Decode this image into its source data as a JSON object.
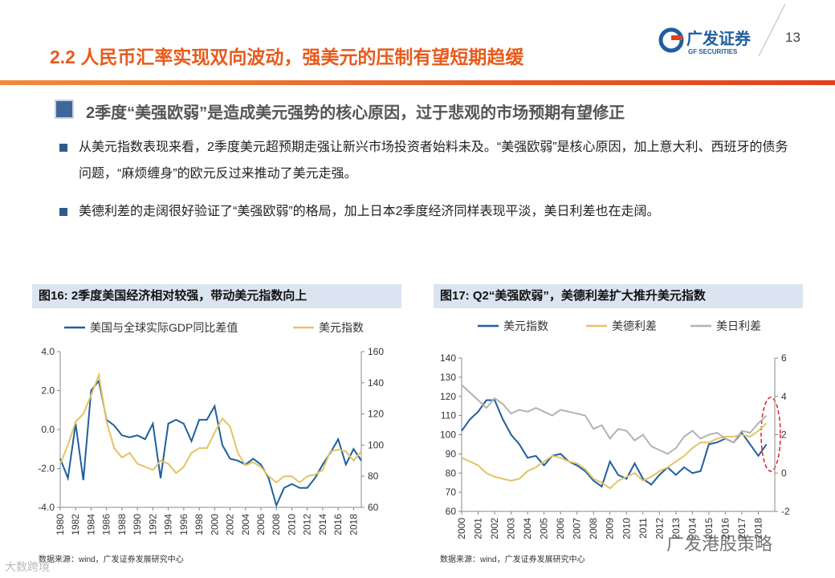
{
  "header": {
    "title": "2.2 人民币汇率实现双向波动，强美元的压制有望短期趋缓",
    "logo": "广发证券",
    "logo_sub": "GF SECURITIES",
    "page": "13"
  },
  "subtitle": "2季度“美强欧弱”是造成美元强势的核心原因，过于悲观的市场预期有望修正",
  "bullets": [
    "从美元指数表现来看，2季度美元超预期走强让新兴市场投资者始料未及。“美强欧弱”是核心原因，加上意大利、西班牙的债务问题，“麻烦缠身”的欧元反过来推动了美元走强。",
    "美德利差的走阔很好验证了“美强欧弱”的格局，加上日本2季度经济同样表现平淡，美日利差也在走阔。"
  ],
  "watermark": "广发港股策略",
  "corner_mark": "大数跨境",
  "chart_data": [
    {
      "type": "line",
      "title": "图16:  2季度美国经济相对较强，带动美元指数向上",
      "source": "数据来源：wind，广发证券发展研究中心",
      "x": [
        1980,
        1981,
        1982,
        1983,
        1984,
        1985,
        1986,
        1987,
        1988,
        1989,
        1990,
        1991,
        1992,
        1993,
        1994,
        1995,
        1996,
        1997,
        1998,
        1999,
        2000,
        2001,
        2002,
        2003,
        2004,
        2005,
        2006,
        2007,
        2008,
        2009,
        2010,
        2011,
        2012,
        2013,
        2014,
        2015,
        2016,
        2017,
        2018,
        2019
      ],
      "xlim": [
        1980,
        2019
      ],
      "xticks": [
        1980,
        1982,
        1984,
        1986,
        1988,
        1990,
        1992,
        1994,
        1996,
        1998,
        2000,
        2002,
        2004,
        2006,
        2008,
        2010,
        2012,
        2014,
        2016,
        2018
      ],
      "ylim": [
        -4,
        4
      ],
      "yticks": [
        {
          "value": -4,
          "label": "-4.0"
        },
        {
          "value": -2,
          "label": "-2.0"
        },
        {
          "value": 0,
          "label": "0.0"
        },
        {
          "value": 2,
          "label": "2.0"
        },
        {
          "value": 4,
          "label": "4.0"
        }
      ],
      "y2lim": [
        60,
        160
      ],
      "y2ticks": [
        60,
        80,
        100,
        120,
        140,
        160
      ],
      "series": [
        {
          "name": "美国与全球实际GDP同比差值",
          "color": "#1f5fa0",
          "values": [
            -1.5,
            -2.5,
            0.3,
            -2.6,
            2,
            2.5,
            0.5,
            0.2,
            -0.3,
            -0.4,
            -0.3,
            -0.5,
            0.3,
            -2.5,
            0.3,
            0.5,
            0.3,
            -0.6,
            0.5,
            0.5,
            1.2,
            -0.8,
            -1.5,
            -1.6,
            -1.8,
            -1.5,
            -1.8,
            -2.5,
            -3.9,
            -3.0,
            -2.8,
            -3.0,
            -3.0,
            -2.5,
            -1.8,
            -1.2,
            -0.5,
            -1.8,
            -1.0,
            -1.6
          ]
        },
        {
          "name": "美元指数",
          "color": "#e3c462",
          "axis": "y2",
          "values": [
            88,
            100,
            115,
            120,
            132,
            145,
            115,
            98,
            92,
            95,
            88,
            86,
            84,
            90,
            88,
            82,
            86,
            95,
            98,
            98,
            108,
            117,
            112,
            95,
            87,
            89,
            86,
            80,
            76,
            80,
            80,
            76,
            80,
            81,
            84,
            96,
            97,
            96,
            90,
            96
          ]
        }
      ]
    },
    {
      "type": "line",
      "title": "图17:  Q2“美强欧弱”，美德利差扩大推升美元指数",
      "source": "数据来源：wind，广发证券发展研究中心",
      "x": [
        2000,
        2000.5,
        2001,
        2001.5,
        2002,
        2002.5,
        2003,
        2003.5,
        2004,
        2004.5,
        2005,
        2005.5,
        2006,
        2006.5,
        2007,
        2007.5,
        2008,
        2008.5,
        2009,
        2009.5,
        2010,
        2010.5,
        2011,
        2011.5,
        2012,
        2012.5,
        2013,
        2013.5,
        2014,
        2014.5,
        2015,
        2015.5,
        2016,
        2016.5,
        2017,
        2017.5,
        2018,
        2018.5
      ],
      "xlim": [
        2000,
        2019
      ],
      "xticks": [
        2000,
        2001,
        2002,
        2003,
        2004,
        2005,
        2006,
        2007,
        2008,
        2009,
        2010,
        2011,
        2012,
        2013,
        2014,
        2015,
        2016,
        2017,
        2018
      ],
      "ylim": [
        60,
        140
      ],
      "yticks": [
        60,
        70,
        80,
        90,
        100,
        110,
        120,
        130,
        140
      ],
      "y2lim": [
        -2,
        6
      ],
      "y2ticks": [
        -2,
        0,
        2,
        4,
        6
      ],
      "series": [
        {
          "name": "美元指数",
          "color": "#1f5fa0",
          "values": [
            102,
            108,
            112,
            118,
            118,
            108,
            100,
            95,
            88,
            89,
            84,
            89,
            90,
            86,
            84,
            81,
            76,
            73,
            86,
            79,
            77,
            85,
            77,
            74,
            79,
            83,
            79,
            83,
            80,
            81,
            95,
            96,
            98,
            96,
            101,
            95,
            89,
            95
          ]
        },
        {
          "name": "美德利差",
          "color": "#e3c462",
          "axis": "y2",
          "values": [
            0.8,
            0.6,
            0.4,
            0.0,
            -0.2,
            -0.3,
            -0.4,
            -0.3,
            0.1,
            0.3,
            0.6,
            0.9,
            0.8,
            0.6,
            0.5,
            0.2,
            -0.3,
            -0.5,
            -0.8,
            -0.4,
            -0.2,
            0.0,
            -0.4,
            -0.2,
            0.1,
            0.3,
            0.6,
            0.9,
            1.3,
            1.6,
            1.6,
            1.8,
            1.9,
            1.9,
            2.0,
            1.9,
            2.2,
            2.6
          ]
        },
        {
          "name": "美日利差",
          "color": "#b3b3b3",
          "axis": "y2",
          "values": [
            4.6,
            4.2,
            3.8,
            3.4,
            3.9,
            3.6,
            3.1,
            3.3,
            3.2,
            3.4,
            3.2,
            3.0,
            3.3,
            3.2,
            3.1,
            3.0,
            2.3,
            2.5,
            1.8,
            2.3,
            2.2,
            1.7,
            2.0,
            1.4,
            1.2,
            1.0,
            1.3,
            1.9,
            2.2,
            1.8,
            2.0,
            2.1,
            1.8,
            1.6,
            2.2,
            2.1,
            2.6,
            3.0
          ]
        }
      ]
    }
  ]
}
